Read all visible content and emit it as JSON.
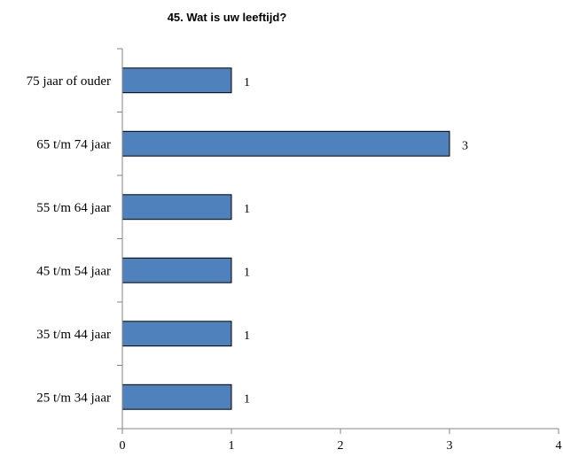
{
  "chart_data": {
    "type": "bar",
    "orientation": "horizontal",
    "title": "45. Wat is uw leeftijd?",
    "categories": [
      "75 jaar of ouder",
      "65 t/m 74 jaar",
      "55 t/m 64 jaar",
      "45 t/m 54 jaar",
      "35 t/m 44 jaar",
      "25 t/m 34 jaar"
    ],
    "values": [
      1,
      3,
      1,
      1,
      1,
      1
    ],
    "data_labels": [
      "1",
      "3",
      "1",
      "1",
      "1",
      "1"
    ],
    "xlim": [
      0,
      4
    ],
    "xticks": [
      "0",
      "1",
      "2",
      "3",
      "4"
    ],
    "xlabel": "",
    "ylabel": "",
    "grid": false,
    "legend": "none",
    "bar_color": "#4F81BD",
    "bar_edge_color": "#000000"
  }
}
